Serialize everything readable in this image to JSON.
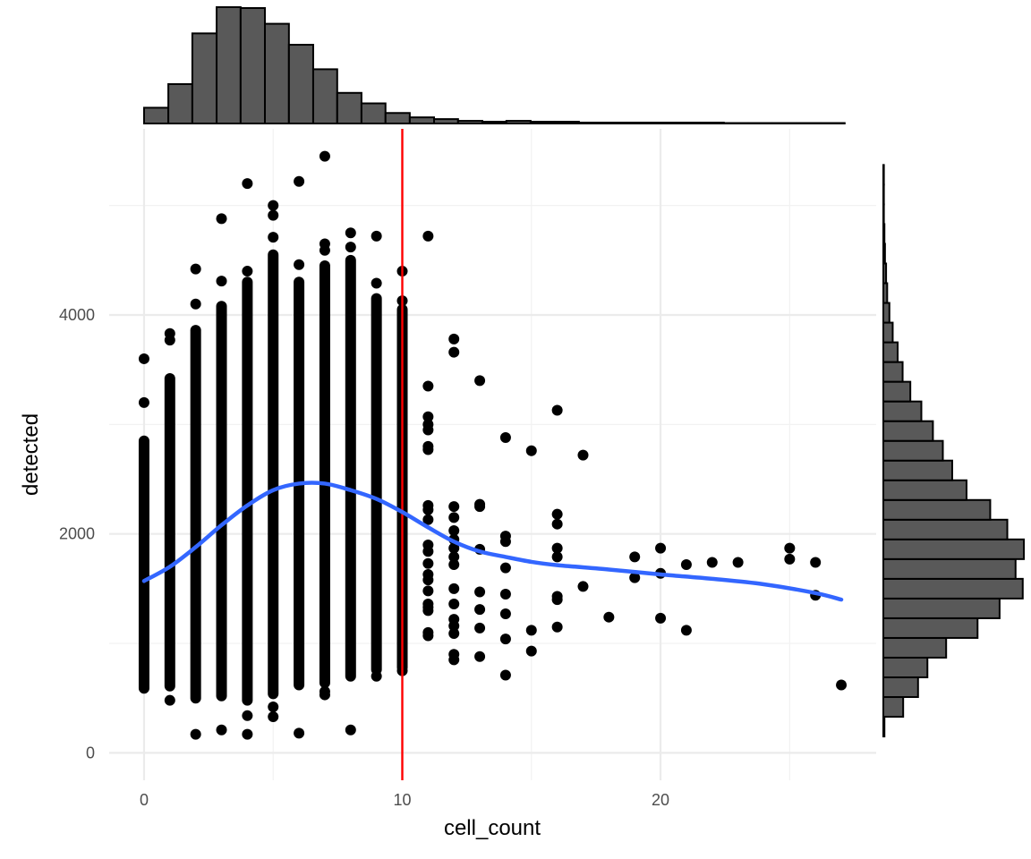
{
  "chart_data": {
    "type": "scatter",
    "xlabel": "cell_count",
    "ylabel": "detected",
    "xlim": [
      -1.35,
      28.35
    ],
    "ylim": [
      -250,
      5700
    ],
    "x_ticks": [
      0,
      10,
      20
    ],
    "x_tick_labels": [
      "0",
      "10",
      "20"
    ],
    "y_ticks": [
      0,
      2000,
      4000
    ],
    "y_tick_labels": [
      "0",
      "2000",
      "4000"
    ],
    "grid": true,
    "reference_line": {
      "x": 10,
      "color": "#ff0000"
    },
    "smooth": {
      "color": "#3366ff",
      "x": [
        0,
        1,
        2,
        3,
        4,
        5,
        6,
        7,
        8,
        9,
        10,
        11,
        12,
        13,
        14,
        15,
        16,
        18,
        20,
        22,
        24,
        26,
        27
      ],
      "y": [
        1570,
        1700,
        1880,
        2080,
        2260,
        2400,
        2460,
        2460,
        2400,
        2320,
        2200,
        2060,
        1930,
        1840,
        1790,
        1745,
        1715,
        1675,
        1630,
        1590,
        1540,
        1460,
        1400
      ]
    },
    "scatter_points": [
      {
        "x": 0,
        "y": 3600
      },
      {
        "x": 0,
        "y": 3200
      },
      {
        "x": 1,
        "y": 3830
      },
      {
        "x": 1,
        "y": 3770
      },
      {
        "x": 1,
        "y": 480
      },
      {
        "x": 2,
        "y": 4420
      },
      {
        "x": 2,
        "y": 4100
      },
      {
        "x": 2,
        "y": 170
      },
      {
        "x": 3,
        "y": 4880
      },
      {
        "x": 3,
        "y": 4310
      },
      {
        "x": 3,
        "y": 210
      },
      {
        "x": 4,
        "y": 5200
      },
      {
        "x": 4,
        "y": 4400
      },
      {
        "x": 4,
        "y": 340
      },
      {
        "x": 4,
        "y": 170
      },
      {
        "x": 5,
        "y": 5000
      },
      {
        "x": 5,
        "y": 4910
      },
      {
        "x": 5,
        "y": 4710
      },
      {
        "x": 5,
        "y": 420
      },
      {
        "x": 5,
        "y": 330
      },
      {
        "x": 6,
        "y": 5220
      },
      {
        "x": 6,
        "y": 4460
      },
      {
        "x": 6,
        "y": 180
      },
      {
        "x": 7,
        "y": 5450
      },
      {
        "x": 7,
        "y": 4650
      },
      {
        "x": 7,
        "y": 4590
      },
      {
        "x": 7,
        "y": 560
      },
      {
        "x": 7,
        "y": 530
      },
      {
        "x": 8,
        "y": 4750
      },
      {
        "x": 8,
        "y": 4620
      },
      {
        "x": 8,
        "y": 210
      },
      {
        "x": 9,
        "y": 4720
      },
      {
        "x": 9,
        "y": 4290
      },
      {
        "x": 9,
        "y": 700
      },
      {
        "x": 10,
        "y": 4400
      },
      {
        "x": 10,
        "y": 4130
      },
      {
        "x": 10,
        "y": 750
      },
      {
        "x": 11,
        "y": 4720
      },
      {
        "x": 11,
        "y": 3350
      },
      {
        "x": 11,
        "y": 3070
      },
      {
        "x": 11,
        "y": 3000
      },
      {
        "x": 11,
        "y": 2950
      },
      {
        "x": 11,
        "y": 2800
      },
      {
        "x": 11,
        "y": 2770
      },
      {
        "x": 11,
        "y": 2260
      },
      {
        "x": 11,
        "y": 2220
      },
      {
        "x": 11,
        "y": 2130
      },
      {
        "x": 11,
        "y": 1900
      },
      {
        "x": 11,
        "y": 1840
      },
      {
        "x": 11,
        "y": 1730
      },
      {
        "x": 11,
        "y": 1630
      },
      {
        "x": 11,
        "y": 1580
      },
      {
        "x": 11,
        "y": 1480
      },
      {
        "x": 11,
        "y": 1360
      },
      {
        "x": 11,
        "y": 1330
      },
      {
        "x": 11,
        "y": 1300
      },
      {
        "x": 11,
        "y": 1100
      },
      {
        "x": 11,
        "y": 1070
      },
      {
        "x": 12,
        "y": 3780
      },
      {
        "x": 12,
        "y": 3660
      },
      {
        "x": 12,
        "y": 2250
      },
      {
        "x": 12,
        "y": 2150
      },
      {
        "x": 12,
        "y": 2030
      },
      {
        "x": 12,
        "y": 1950
      },
      {
        "x": 12,
        "y": 1870
      },
      {
        "x": 12,
        "y": 1790
      },
      {
        "x": 12,
        "y": 1720
      },
      {
        "x": 12,
        "y": 1500
      },
      {
        "x": 12,
        "y": 1360
      },
      {
        "x": 12,
        "y": 1220
      },
      {
        "x": 12,
        "y": 1160
      },
      {
        "x": 12,
        "y": 1090
      },
      {
        "x": 12,
        "y": 900
      },
      {
        "x": 12,
        "y": 850
      },
      {
        "x": 13,
        "y": 3400
      },
      {
        "x": 13,
        "y": 2270
      },
      {
        "x": 13,
        "y": 2250
      },
      {
        "x": 13,
        "y": 1860
      },
      {
        "x": 13,
        "y": 1470
      },
      {
        "x": 13,
        "y": 1310
      },
      {
        "x": 13,
        "y": 1140
      },
      {
        "x": 13,
        "y": 880
      },
      {
        "x": 14,
        "y": 2880
      },
      {
        "x": 14,
        "y": 1980
      },
      {
        "x": 14,
        "y": 1930
      },
      {
        "x": 14,
        "y": 1690
      },
      {
        "x": 14,
        "y": 1450
      },
      {
        "x": 14,
        "y": 1270
      },
      {
        "x": 14,
        "y": 1040
      },
      {
        "x": 14,
        "y": 710
      },
      {
        "x": 15,
        "y": 2760
      },
      {
        "x": 15,
        "y": 1120
      },
      {
        "x": 15,
        "y": 930
      },
      {
        "x": 16,
        "y": 3130
      },
      {
        "x": 16,
        "y": 2180
      },
      {
        "x": 16,
        "y": 2090
      },
      {
        "x": 16,
        "y": 1870
      },
      {
        "x": 16,
        "y": 1790
      },
      {
        "x": 16,
        "y": 1430
      },
      {
        "x": 16,
        "y": 1400
      },
      {
        "x": 16,
        "y": 1150
      },
      {
        "x": 17,
        "y": 2720
      },
      {
        "x": 17,
        "y": 1520
      },
      {
        "x": 18,
        "y": 1240
      },
      {
        "x": 19,
        "y": 1790
      },
      {
        "x": 19,
        "y": 1600
      },
      {
        "x": 20,
        "y": 1870
      },
      {
        "x": 20,
        "y": 1640
      },
      {
        "x": 20,
        "y": 1230
      },
      {
        "x": 21,
        "y": 1720
      },
      {
        "x": 21,
        "y": 1120
      },
      {
        "x": 22,
        "y": 1740
      },
      {
        "x": 23,
        "y": 1740
      },
      {
        "x": 25,
        "y": 1870
      },
      {
        "x": 25,
        "y": 1770
      },
      {
        "x": 26,
        "y": 1740
      },
      {
        "x": 26,
        "y": 1440
      },
      {
        "x": 27,
        "y": 620
      }
    ],
    "vertical_bands": [
      {
        "x": 0,
        "ymin": 590,
        "ymax": 2850
      },
      {
        "x": 1,
        "ymin": 610,
        "ymax": 3420
      },
      {
        "x": 2,
        "ymin": 500,
        "ymax": 3860
      },
      {
        "x": 3,
        "ymin": 520,
        "ymax": 4080
      },
      {
        "x": 4,
        "ymin": 480,
        "ymax": 4300
      },
      {
        "x": 5,
        "ymin": 540,
        "ymax": 4550
      },
      {
        "x": 6,
        "ymin": 620,
        "ymax": 4300
      },
      {
        "x": 7,
        "ymin": 640,
        "ymax": 4450
      },
      {
        "x": 8,
        "ymin": 700,
        "ymax": 4500
      },
      {
        "x": 9,
        "ymin": 760,
        "ymax": 4150
      },
      {
        "x": 10,
        "ymin": 780,
        "ymax": 4050
      }
    ],
    "top_histogram": {
      "bin_edges": [
        0,
        0.94,
        1.87,
        2.81,
        3.74,
        4.68,
        5.61,
        6.55,
        7.48,
        8.42,
        9.35,
        10.29,
        11.23,
        12.16,
        13.1,
        14.03,
        14.97,
        15.9,
        16.84,
        17.77,
        18.71,
        19.65,
        20.58,
        21.52,
        22.45,
        23.39,
        24.32,
        25.26,
        26.19,
        27.13
      ],
      "counts": [
        18,
        45,
        103,
        133,
        132,
        114,
        90,
        62,
        35,
        23,
        12,
        7,
        5,
        3,
        2,
        3,
        2,
        2,
        1,
        1,
        1,
        1,
        1,
        1,
        0.5,
        0.5,
        0.5,
        0.5,
        0.5
      ]
    },
    "right_histogram": {
      "bin_edges": [
        150,
        330,
        510,
        690,
        870,
        1050,
        1230,
        1410,
        1590,
        1770,
        1950,
        2130,
        2310,
        2490,
        2670,
        2850,
        3030,
        3210,
        3390,
        3570,
        3750,
        3930,
        4110,
        4290,
        4470,
        4650,
        4830,
        5010,
        5190,
        5370
      ],
      "counts": [
        2,
        36,
        63,
        80,
        114,
        171,
        211,
        253,
        240,
        255,
        225,
        194,
        151,
        125,
        108,
        90,
        69,
        49,
        35,
        26,
        17,
        11,
        7,
        5,
        3,
        2,
        1,
        1,
        1
      ]
    }
  }
}
